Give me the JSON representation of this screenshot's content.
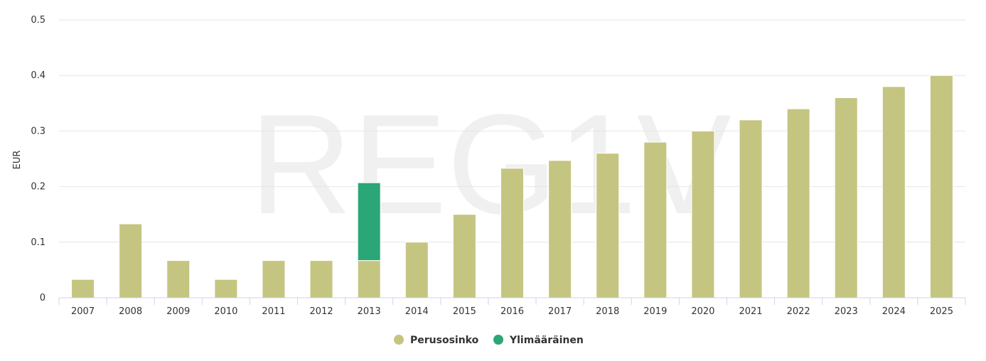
{
  "chart_data": {
    "type": "bar",
    "stacked": true,
    "watermark": "REG1V",
    "title": "",
    "xlabel": "",
    "ylabel": "EUR",
    "ylim": [
      0,
      0.5
    ],
    "yticks": [
      "0",
      "0.1",
      "0.2",
      "0.3",
      "0.4",
      "0.5"
    ],
    "grid": true,
    "legend_position": "bottom-center",
    "categories": [
      "2007",
      "2008",
      "2009",
      "2010",
      "2011",
      "2012",
      "2013",
      "2014",
      "2015",
      "2016",
      "2017",
      "2018",
      "2019",
      "2020",
      "2021",
      "2022",
      "2023",
      "2024",
      "2025"
    ],
    "series": [
      {
        "name": "Perusosinko",
        "color": "#c5c582",
        "values": [
          0.033,
          0.133,
          0.067,
          0.033,
          0.067,
          0.067,
          0.067,
          0.1,
          0.15,
          0.233,
          0.247,
          0.26,
          0.28,
          0.3,
          0.32,
          0.34,
          0.36,
          0.38,
          0.4
        ]
      },
      {
        "name": "Ylimääräinen",
        "color": "#2aa677",
        "values": [
          0,
          0,
          0,
          0,
          0,
          0,
          0.14,
          0,
          0,
          0,
          0,
          0,
          0,
          0,
          0,
          0,
          0,
          0,
          0
        ]
      }
    ]
  }
}
